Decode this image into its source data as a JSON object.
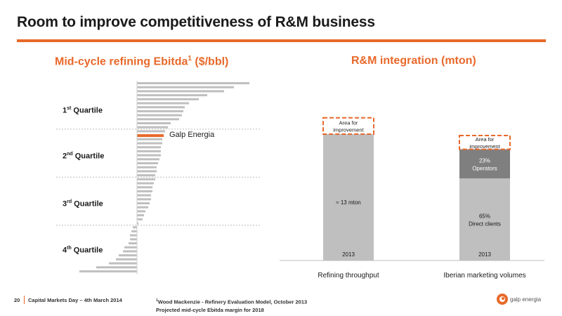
{
  "page": {
    "title": "Room to improve competitiveness of R&M business"
  },
  "left": {
    "subtitle": "Mid-cycle refining Ebitda",
    "subtitle_sup": "1",
    "subtitle_unit": " ($/bbl)",
    "quartiles": [
      {
        "ord": "1",
        "sup": "st",
        "rest": " Quartile"
      },
      {
        "ord": "2",
        "sup": "nd",
        "rest": " Quartile"
      },
      {
        "ord": "3",
        "sup": "rd",
        "rest": " Quartile"
      },
      {
        "ord": "4",
        "sup": "th",
        "rest": " Quartile"
      }
    ],
    "highlight_label": "Galp Energia"
  },
  "right": {
    "subtitle": "R&M integration (mton)"
  },
  "chart_data": [
    {
      "type": "bar",
      "orientation": "horizontal",
      "title": "Mid-cycle refining Ebitda¹ ($/bbl)",
      "highlight": "Galp Energia",
      "highlight_index": 13,
      "values": [
        8.0,
        6.9,
        6.2,
        5.0,
        4.4,
        3.7,
        3.4,
        3.3,
        3.2,
        3.0,
        2.4,
        2.2,
        2.0,
        1.9,
        1.8,
        1.8,
        1.7,
        1.7,
        1.7,
        1.6,
        1.5,
        1.4,
        1.4,
        1.3,
        1.3,
        1.2,
        1.1,
        1.1,
        1.0,
        1.0,
        0.9,
        0.8,
        0.6,
        0.5,
        0.4,
        0.1,
        -0.3,
        -0.4,
        -0.5,
        -0.5,
        -0.6,
        -0.9,
        -1.0,
        -1.3,
        -1.5,
        -2.0,
        -2.9,
        -4.1
      ],
      "quartile_breaks": [
        12,
        24,
        36
      ],
      "highlight_color": "#e8692a",
      "bar_color": "#bfbfbf"
    },
    {
      "type": "bar",
      "stacked": true,
      "title": "R&M integration (mton)",
      "categories": [
        "Refining throughput",
        "Iberian marketing volumes"
      ],
      "bars": [
        {
          "category": "Refining throughput",
          "year_label": "2013",
          "segments": [
            {
              "label": "≈ 13 mton",
              "value": 100,
              "color": "#bfbfbf"
            },
            {
              "label": "Area for improvement",
              "value": 14,
              "color": "none",
              "dashed": true
            }
          ]
        },
        {
          "category": "Iberian marketing volumes",
          "year_label": "2013",
          "segments": [
            {
              "label": "65% Direct clients",
              "value": 65,
              "color": "#bfbfbf"
            },
            {
              "label": "23% Operators",
              "value": 23,
              "color": "#7f7f7f"
            },
            {
              "label": "Area for improvement",
              "value": 12,
              "color": "none",
              "dashed": true
            }
          ]
        }
      ],
      "accent": "#e8692a"
    }
  ],
  "footer": {
    "page_number": "20",
    "event": "Capital Markets Day – 4th March 2014",
    "footnote_sup": "1",
    "footnote_line1": "Wood Mackenzie - Refinery Evaluation Model, October 2013",
    "footnote_line2": "Projected mid-cycle Ebitda margin for 2018",
    "logo_text": "galp energia",
    "logo_color": "#e8692a"
  }
}
